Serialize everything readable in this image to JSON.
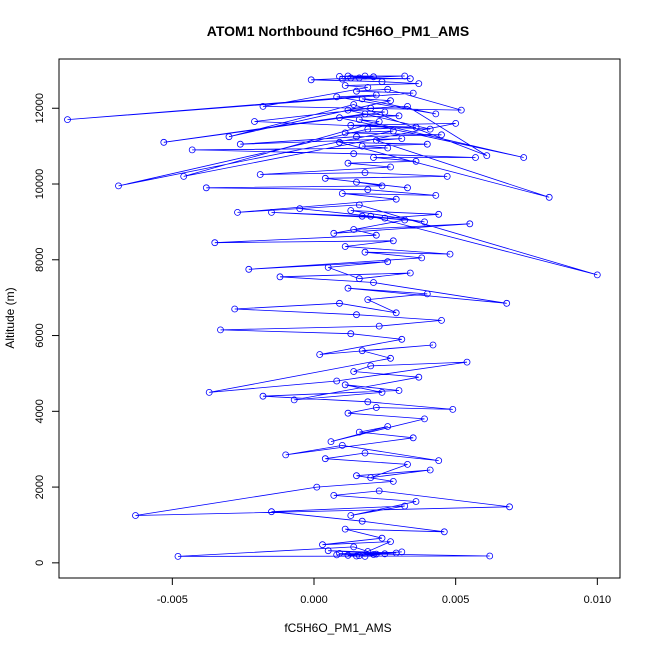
{
  "chart_data": {
    "type": "line",
    "title": "ATOM1 Northbound fC5H6O_PM1_AMS",
    "xlabel": "fC5H6O_PM1_AMS",
    "ylabel": "Altitude (m)",
    "xlim": [
      -0.009,
      0.0108
    ],
    "ylim": [
      -400,
      13300
    ],
    "xticks": [
      -0.005,
      0.0,
      0.005,
      0.01
    ],
    "xtick_labels": [
      "-0.005",
      "0.000",
      "0.005",
      "0.010"
    ],
    "yticks": [
      0,
      2000,
      4000,
      6000,
      8000,
      10000,
      12000
    ],
    "ytick_labels": [
      "0",
      "2000",
      "4000",
      "6000",
      "8000",
      "10000",
      "12000"
    ],
    "grid": false,
    "legend": "none",
    "series_color": "#0000ff",
    "marker": "open-circle",
    "series": [
      {
        "x": [
          0.0015,
          0.0022,
          0.0008,
          0.0031,
          0.0012,
          0.0018,
          0.0025,
          0.0005,
          0.0029,
          0.0016,
          0.0021,
          0.0009,
          0.0062,
          -0.0048,
          0.0014,
          0.0019,
          0.0027,
          0.0003,
          0.0024,
          0.0011,
          0.0046,
          0.0017,
          -0.0015,
          0.0032,
          0.0013,
          0.0036,
          0.0007,
          0.0023,
          0.0069,
          -0.0063,
          0.0001,
          0.0028,
          0.0015,
          0.0041,
          0.002,
          0.0033,
          0.0004,
          0.0018,
          0.0044,
          0.001,
          -0.001,
          0.0035,
          0.0016,
          0.0026,
          0.0006,
          0.0039,
          0.0012,
          0.0022,
          0.0049,
          0.0019,
          -0.0018,
          0.003,
          0.0011,
          0.0024,
          -0.0007,
          0.0037,
          0.0014,
          0.002,
          0.0054,
          0.0008,
          -0.0037,
          0.0027,
          0.0017,
          0.0042,
          0.0002,
          0.0031,
          0.0013,
          -0.0033,
          0.0023,
          0.0045,
          0.0015,
          -0.0028,
          0.0009,
          0.0029,
          0.0019,
          0.004,
          0.0012,
          0.0068,
          0.0021,
          -0.0012,
          0.0034,
          0.0016,
          0.0005,
          0.0026,
          -0.0023,
          0.0038,
          0.0018,
          0.0048,
          0.0011,
          0.0028,
          -0.0035,
          0.0022,
          0.0014,
          0.0055,
          0.0007,
          0.0032,
          0.0017,
          -0.0015,
          0.0025,
          0.0044,
          0.0013,
          0.0039,
          -0.0005,
          0.002,
          0.01,
          0.0016,
          -0.0027,
          0.0029,
          0.001,
          0.0043,
          0.0019,
          -0.0038,
          0.0024,
          0.0015,
          0.0033,
          0.0004,
          0.0047,
          0.0018,
          -0.0019,
          0.0027,
          0.0012,
          0.0036,
          0.0021,
          0.0057,
          0.0014,
          -0.0043,
          0.0026,
          0.0017,
          0.004,
          0.0009,
          0.0083,
          0.0022,
          0.0031,
          -0.0026,
          0.0015,
          0.0045,
          0.0011,
          0.0028,
          -0.0069,
          0.0019,
          0.0036,
          0.0013,
          0.005,
          -0.0046,
          0.0023,
          0.0016,
          0.0074,
          0.0009,
          0.003,
          0.0018,
          -0.0053,
          0.0025,
          0.0012,
          0.0041,
          -0.0021,
          0.002,
          0.0033,
          0.0061,
          0.0014,
          -0.003,
          0.0027,
          0.0017,
          0.0043,
          0.0008,
          0.0022,
          -0.0087,
          0.0035,
          0.0015,
          0.0026,
          0.0052,
          -0.0018,
          0.0019,
          0.0011,
          0.0037,
          0.0024,
          -0.0001,
          0.0016,
          0.0032,
          0.0012,
          0.0009,
          0.0021,
          0.0013,
          0.0034,
          0.001,
          0.0018
        ],
        "y": [
          180,
          230,
          210,
          290,
          200,
          170,
          240,
          320,
          260,
          190,
          220,
          250,
          180,
          170,
          420,
          300,
          560,
          480,
          650,
          890,
          820,
          1100,
          1350,
          1500,
          1250,
          1620,
          1780,
          1900,
          1480,
          1250,
          2000,
          2150,
          2300,
          2450,
          2250,
          2600,
          2750,
          2900,
          2700,
          3100,
          2850,
          3300,
          3450,
          3600,
          3200,
          3800,
          3950,
          4100,
          4050,
          4250,
          4400,
          4550,
          4700,
          4500,
          4300,
          4900,
          5050,
          5200,
          5300,
          4800,
          4500,
          5400,
          5600,
          5750,
          5500,
          5900,
          6050,
          6150,
          6250,
          6400,
          6550,
          6700,
          6850,
          6600,
          6950,
          7100,
          7250,
          6850,
          7400,
          7550,
          7650,
          7500,
          7800,
          7950,
          7750,
          8050,
          8200,
          8150,
          8350,
          8500,
          8450,
          8650,
          8800,
          8950,
          8700,
          9050,
          9150,
          9250,
          9100,
          9200,
          9300,
          9000,
          9350,
          9150,
          7600,
          9450,
          9250,
          9600,
          9750,
          9700,
          9850,
          9900,
          9950,
          10050,
          9900,
          10150,
          10200,
          10300,
          10250,
          10450,
          10550,
          10600,
          10700,
          10700,
          10800,
          10900,
          10950,
          11000,
          11050,
          11100,
          9650,
          11150,
          11200,
          11050,
          11250,
          11300,
          11350,
          11400,
          9950,
          11450,
          11500,
          11550,
          11600,
          10200,
          11650,
          11700,
          10700,
          11750,
          11800,
          11850,
          11100,
          11900,
          11950,
          11450,
          11650,
          12000,
          12050,
          10750,
          12100,
          11250,
          12200,
          12250,
          11850,
          12300,
          12350,
          11700,
          12400,
          12450,
          12500,
          11950,
          12050,
          12550,
          12600,
          12650,
          12700,
          12750,
          12800,
          12850,
          12850,
          12840,
          12830,
          12800,
          12780,
          12770,
          12850
        ]
      }
    ]
  }
}
